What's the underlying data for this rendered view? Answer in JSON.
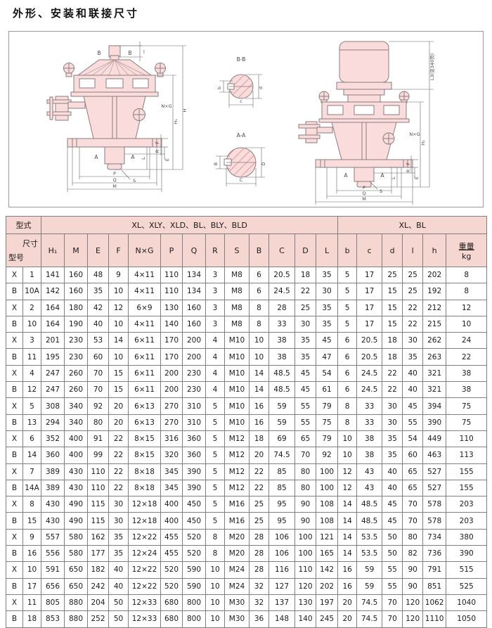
{
  "page": {
    "title": "外形、安装和联接尺寸"
  },
  "drawing": {
    "labels": {
      "B": "B",
      "A": "A",
      "l": "l",
      "H": "H",
      "H1": "H₁",
      "NxG": "N×G",
      "F": "F",
      "R": "R",
      "E": "E",
      "L": "L",
      "S": "S",
      "P": "P",
      "Q": "Q",
      "M": "M",
      "L3": "L3(见340页)",
      "bb_title": "B-B",
      "aa_title": "A-A",
      "b": "b",
      "c": "c",
      "d": "d",
      "B_dim": "B",
      "C_dim": "C",
      "D_dim": "D"
    }
  },
  "table": {
    "group_header": {
      "type_label": "型式",
      "group1": "XL、XLY、XLD、BL、BLY、BLD",
      "group2": "XL、BL"
    },
    "corner": {
      "top": "尺寸",
      "bottom": "型号"
    },
    "columns": [
      "H₁",
      "M",
      "E",
      "F",
      "N×G",
      "P",
      "Q",
      "R",
      "S",
      "B",
      "C",
      "D",
      "L",
      "b",
      "c",
      "d",
      "l",
      "h"
    ],
    "weight_header": {
      "line1": "重量",
      "line2": "kg"
    },
    "rows": [
      {
        "series": "X",
        "model": "1",
        "values": [
          "141",
          "160",
          "48",
          "9",
          "4×11",
          "110",
          "134",
          "3",
          "M8",
          "6",
          "20.5",
          "18",
          "35",
          "5",
          "17",
          "25",
          "25",
          "202",
          "8"
        ]
      },
      {
        "series": "B",
        "model": "10A",
        "values": [
          "142",
          "160",
          "35",
          "10",
          "4×11",
          "110",
          "134",
          "3",
          "M8",
          "6",
          "24.5",
          "22",
          "30",
          "5",
          "17",
          "15",
          "25",
          "192",
          "8"
        ]
      },
      {
        "series": "X",
        "model": "2",
        "values": [
          "164",
          "180",
          "42",
          "12",
          "6×9",
          "130",
          "160",
          "3",
          "M8",
          "8",
          "28",
          "25",
          "35",
          "5",
          "17",
          "15",
          "22",
          "212",
          "12"
        ]
      },
      {
        "series": "B",
        "model": "10",
        "values": [
          "164",
          "190",
          "40",
          "10",
          "4×11",
          "140",
          "160",
          "3",
          "M8",
          "8",
          "33",
          "30",
          "35",
          "5",
          "17",
          "15",
          "22",
          "215",
          "10"
        ]
      },
      {
        "series": "X",
        "model": "3",
        "values": [
          "201",
          "230",
          "53",
          "14",
          "6×11",
          "170",
          "200",
          "4",
          "M10",
          "10",
          "38",
          "35",
          "45",
          "6",
          "20.5",
          "18",
          "30",
          "262",
          "24"
        ]
      },
      {
        "series": "B",
        "model": "11",
        "values": [
          "195",
          "230",
          "60",
          "10",
          "6×11",
          "170",
          "200",
          "4",
          "M10",
          "10",
          "38",
          "35",
          "47",
          "6",
          "20.5",
          "18",
          "35",
          "263",
          "22"
        ]
      },
      {
        "series": "X",
        "model": "4",
        "values": [
          "247",
          "260",
          "70",
          "15",
          "6×11",
          "200",
          "230",
          "4",
          "M10",
          "14",
          "48.5",
          "45",
          "54",
          "6",
          "24.5",
          "22",
          "40",
          "321",
          "38"
        ]
      },
      {
        "series": "B",
        "model": "12",
        "values": [
          "247",
          "260",
          "70",
          "15",
          "6×11",
          "200",
          "230",
          "4",
          "M10",
          "14",
          "48.5",
          "45",
          "61",
          "6",
          "24.5",
          "22",
          "40",
          "321",
          "38"
        ]
      },
      {
        "series": "X",
        "model": "5",
        "values": [
          "308",
          "340",
          "92",
          "20",
          "6×13",
          "270",
          "310",
          "5",
          "M10",
          "16",
          "59",
          "55",
          "79",
          "8",
          "33",
          "30",
          "45",
          "394",
          "75"
        ]
      },
      {
        "series": "B",
        "model": "13",
        "values": [
          "294",
          "340",
          "80",
          "20",
          "6×13",
          "270",
          "310",
          "5",
          "M10",
          "16",
          "59",
          "55",
          "75",
          "8",
          "33",
          "30",
          "55",
          "390",
          "75"
        ]
      },
      {
        "series": "X",
        "model": "6",
        "values": [
          "352",
          "400",
          "91",
          "22",
          "8×15",
          "316",
          "360",
          "5",
          "M12",
          "18",
          "69",
          "65",
          "79",
          "10",
          "38",
          "35",
          "54",
          "449",
          "110"
        ]
      },
      {
        "series": "B",
        "model": "14",
        "values": [
          "360",
          "400",
          "99",
          "22",
          "8×15",
          "320",
          "360",
          "5",
          "M12",
          "20",
          "74.5",
          "70",
          "92",
          "10",
          "38",
          "35",
          "60",
          "463",
          "113"
        ]
      },
      {
        "series": "X",
        "model": "7",
        "values": [
          "389",
          "430",
          "110",
          "22",
          "8×18",
          "345",
          "390",
          "5",
          "M12",
          "22",
          "85",
          "80",
          "100",
          "12",
          "43",
          "40",
          "65",
          "527",
          "155"
        ]
      },
      {
        "series": "B",
        "model": "14A",
        "values": [
          "389",
          "430",
          "110",
          "22",
          "8×18",
          "345",
          "390",
          "5",
          "M12",
          "22",
          "85",
          "80",
          "100",
          "12",
          "43",
          "40",
          "65",
          "527",
          "155"
        ]
      },
      {
        "series": "X",
        "model": "8",
        "values": [
          "430",
          "490",
          "115",
          "30",
          "12×18",
          "400",
          "450",
          "5",
          "M16",
          "25",
          "95",
          "90",
          "108",
          "14",
          "48.5",
          "45",
          "70",
          "578",
          "203"
        ]
      },
      {
        "series": "B",
        "model": "15",
        "values": [
          "430",
          "490",
          "115",
          "30",
          "12×18",
          "400",
          "450",
          "5",
          "M16",
          "25",
          "95",
          "90",
          "108",
          "14",
          "48.5",
          "45",
          "70",
          "578",
          "203"
        ]
      },
      {
        "series": "X",
        "model": "9",
        "values": [
          "557",
          "580",
          "162",
          "35",
          "12×22",
          "455",
          "520",
          "8",
          "M20",
          "28",
          "106",
          "100",
          "121",
          "14",
          "53.5",
          "50",
          "80",
          "734",
          "380"
        ]
      },
      {
        "series": "B",
        "model": "16",
        "values": [
          "556",
          "580",
          "177",
          "35",
          "12×24",
          "455",
          "520",
          "8",
          "M20",
          "28",
          "106",
          "100",
          "165",
          "14",
          "53.5",
          "50",
          "82",
          "736",
          "390"
        ]
      },
      {
        "series": "X",
        "model": "10",
        "values": [
          "591",
          "650",
          "182",
          "40",
          "12×22",
          "520",
          "590",
          "10",
          "M24",
          "28",
          "116",
          "110",
          "142",
          "16",
          "59",
          "55",
          "90",
          "791",
          "515"
        ]
      },
      {
        "series": "B",
        "model": "17",
        "values": [
          "656",
          "650",
          "242",
          "40",
          "12×22",
          "520",
          "590",
          "10",
          "M24",
          "32",
          "127",
          "120",
          "202",
          "16",
          "59",
          "55",
          "90",
          "851",
          "525"
        ]
      },
      {
        "series": "X",
        "model": "11",
        "values": [
          "805",
          "880",
          "204",
          "50",
          "12×33",
          "680",
          "800",
          "10",
          "M30",
          "32",
          "137",
          "130",
          "197",
          "20",
          "74.5",
          "70",
          "120",
          "1062",
          "1040"
        ]
      },
      {
        "series": "B",
        "model": "18",
        "values": [
          "853",
          "880",
          "252",
          "50",
          "12×33",
          "680",
          "800",
          "10",
          "M30",
          "36",
          "148",
          "140",
          "245",
          "20",
          "74.5",
          "70",
          "120",
          "1110",
          "1050"
        ]
      }
    ]
  }
}
